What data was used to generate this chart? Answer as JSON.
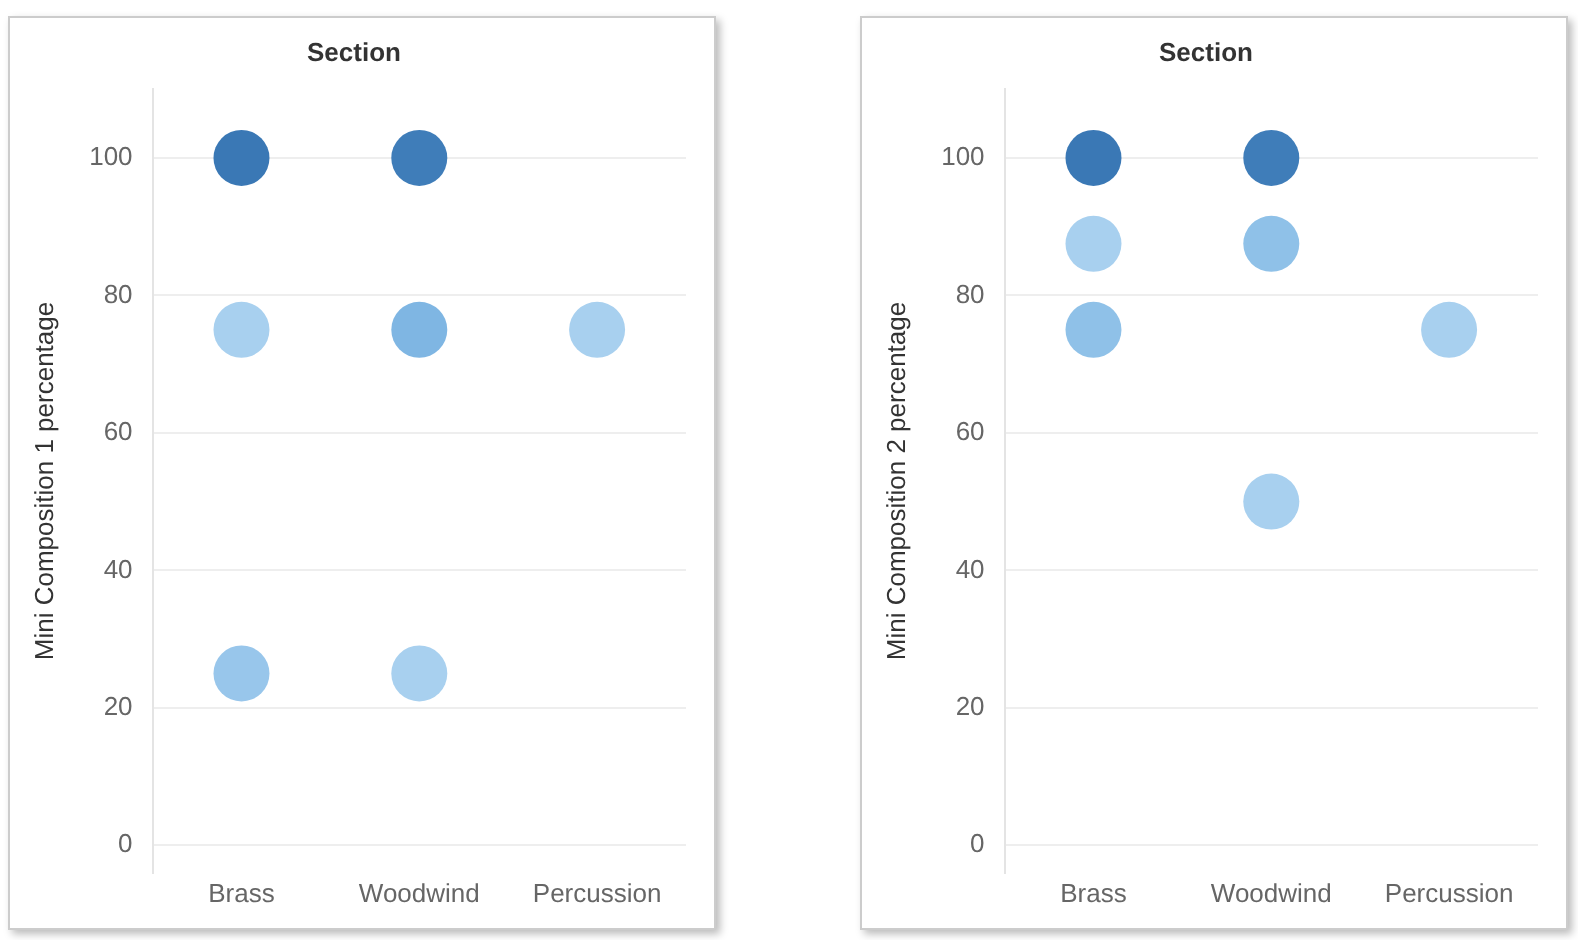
{
  "chart_data": [
    {
      "type": "scatter",
      "xlabel": "Section",
      "ylabel": "Mini Composition 1 percentage",
      "categories": [
        "Brass",
        "Woodwind",
        "Percussion"
      ],
      "series": [
        {
          "values": [
            100,
            100,
            null
          ],
          "colors": [
            "#3a78b5",
            "#3f7db9",
            null
          ]
        },
        {
          "values": [
            75,
            75,
            75
          ],
          "colors": [
            "#a8d0ef",
            "#7fb6e3",
            "#a8d0ef"
          ]
        },
        {
          "values": [
            25,
            25,
            null
          ],
          "colors": [
            "#98c6eb",
            "#a8d0ef",
            null
          ]
        }
      ],
      "ylim": [
        -4,
        110
      ],
      "yticks": [
        0,
        20,
        40,
        60,
        80,
        100
      ],
      "grid": "y",
      "marker": "circle"
    },
    {
      "type": "scatter",
      "xlabel": "Section",
      "ylabel": "Mini Composition 2 percentage",
      "categories": [
        "Brass",
        "Woodwind",
        "Percussion"
      ],
      "series": [
        {
          "values": [
            100,
            100,
            null
          ],
          "colors": [
            "#3a78b5",
            "#3f7db9",
            null
          ]
        },
        {
          "values": [
            87.5,
            87.5,
            null
          ],
          "colors": [
            "#a8d0ef",
            "#8fc1e8",
            null
          ]
        },
        {
          "values": [
            75,
            null,
            75
          ],
          "colors": [
            "#8fc1e8",
            null,
            "#a8d0ef"
          ]
        },
        {
          "values": [
            null,
            50,
            null
          ],
          "colors": [
            null,
            "#a8d0ef",
            null
          ]
        }
      ],
      "ylim": [
        -4,
        110
      ],
      "yticks": [
        0,
        20,
        40,
        60,
        80,
        100
      ],
      "grid": "y",
      "marker": "circle"
    }
  ]
}
